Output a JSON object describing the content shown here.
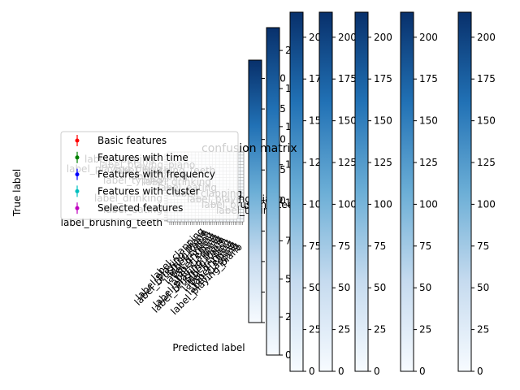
{
  "chart_data": {
    "type": "heatmap",
    "title": "confusion matrix",
    "xlabel": "Predicted label",
    "ylabel": "True label",
    "class_labels_visible": [
      "label_clapping",
      "label_playing_piano",
      "label_brushing_teeth",
      "label_typing",
      "label_drinking",
      "label_eating"
    ],
    "legend": [
      {
        "label": "Basic features",
        "color": "#ff0000"
      },
      {
        "label": "Features with time",
        "color": "#008000"
      },
      {
        "label": "Features with frequency",
        "color": "#0000ff"
      },
      {
        "label": "Features with cluster",
        "color": "#00bfbf"
      },
      {
        "label": "Selected features",
        "color": "#bf00bf"
      }
    ],
    "colorbars": [
      {
        "min": 0,
        "max": 215,
        "ticks": [
          0,
          25,
          50,
          75,
          100,
          125,
          150,
          175,
          200
        ]
      },
      {
        "min": 0,
        "max": 215,
        "ticks": [
          0,
          25,
          50,
          75,
          100,
          125,
          150,
          175,
          200
        ]
      },
      {
        "min": 0,
        "max": 215,
        "ticks": [
          0,
          25,
          50,
          75,
          100,
          125,
          150,
          175,
          200
        ]
      },
      {
        "min": 0,
        "max": 215,
        "ticks": [
          0,
          25,
          50,
          75,
          100,
          125,
          150,
          175,
          200
        ]
      },
      {
        "min": 0,
        "max": 215,
        "ticks": [
          0,
          25,
          50,
          75,
          100,
          125,
          150,
          175,
          200
        ]
      },
      {
        "min": 0,
        "max": 215,
        "ticks": [
          0,
          25,
          50,
          75,
          100,
          125,
          150,
          175,
          200
        ]
      },
      {
        "min": 0,
        "max": 215,
        "ticks": [
          0,
          25,
          50,
          75,
          100,
          125,
          150,
          175,
          200
        ]
      }
    ],
    "colormap": [
      "#f7fbff",
      "#08306b"
    ]
  }
}
